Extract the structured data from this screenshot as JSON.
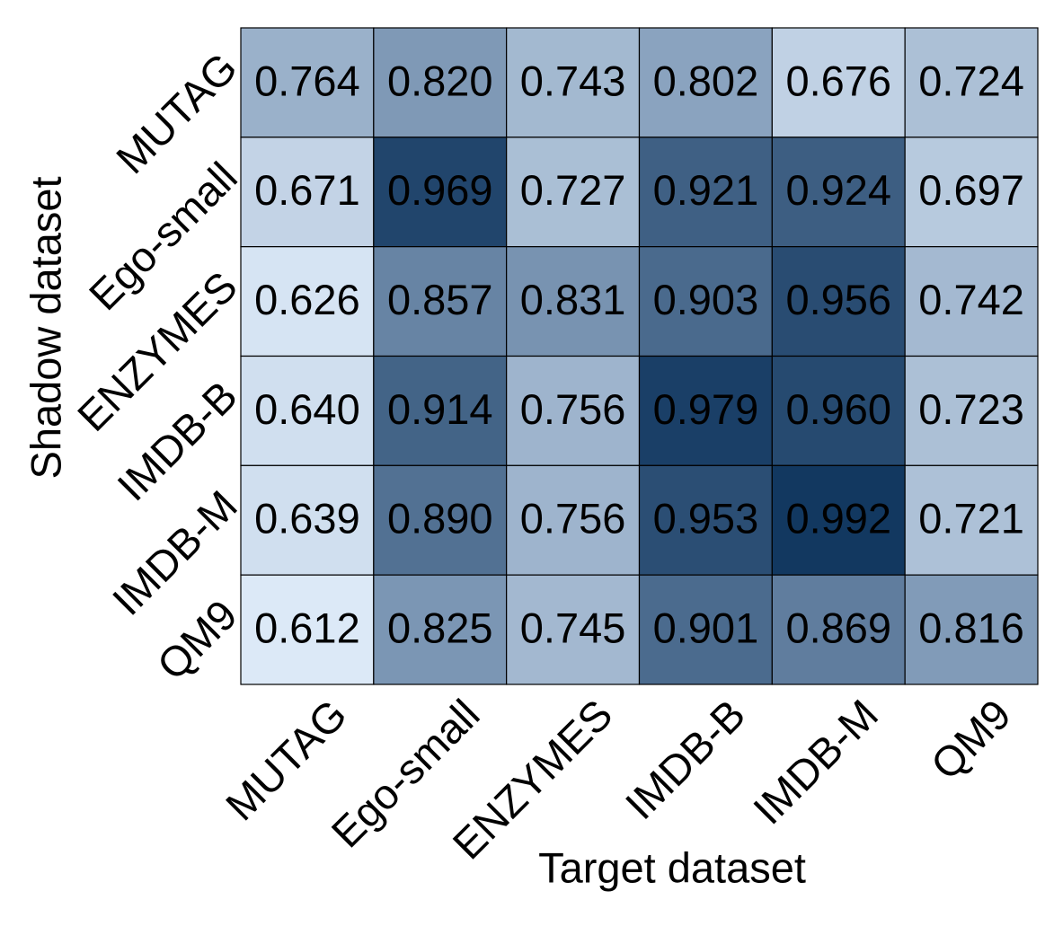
{
  "chart_data": {
    "type": "heatmap",
    "x_label": "Target dataset",
    "y_label": "Shadow dataset",
    "x_categories": [
      "MUTAG",
      "Ego-small",
      "ENZYMES",
      "IMDB-B",
      "IMDB-M",
      "QM9"
    ],
    "y_categories": [
      "MUTAG",
      "Ego-small",
      "ENZYMES",
      "IMDB-B",
      "IMDB-M",
      "QM9"
    ],
    "values": [
      [
        0.764,
        0.82,
        0.743,
        0.802,
        0.676,
        0.724
      ],
      [
        0.671,
        0.969,
        0.727,
        0.921,
        0.924,
        0.697
      ],
      [
        0.626,
        0.857,
        0.831,
        0.903,
        0.956,
        0.742
      ],
      [
        0.64,
        0.914,
        0.756,
        0.979,
        0.96,
        0.723
      ],
      [
        0.639,
        0.89,
        0.756,
        0.953,
        0.992,
        0.721
      ],
      [
        0.612,
        0.825,
        0.745,
        0.901,
        0.869,
        0.816
      ]
    ],
    "value_labels": [
      [
        "0.764",
        "0.820",
        "0.743",
        "0.802",
        "0.676",
        "0.724"
      ],
      [
        "0.671",
        "0.969",
        "0.727",
        "0.921",
        "0.924",
        "0.697"
      ],
      [
        "0.626",
        "0.857",
        "0.831",
        "0.903",
        "0.956",
        "0.742"
      ],
      [
        "0.640",
        "0.914",
        "0.756",
        "0.979",
        "0.960",
        "0.723"
      ],
      [
        "0.639",
        "0.890",
        "0.756",
        "0.953",
        "0.992",
        "0.721"
      ],
      [
        "0.612",
        "0.825",
        "0.745",
        "0.901",
        "0.869",
        "0.816"
      ]
    ],
    "colors": [
      "#dce9f7",
      "#8aa3bf",
      "#123860"
    ]
  }
}
